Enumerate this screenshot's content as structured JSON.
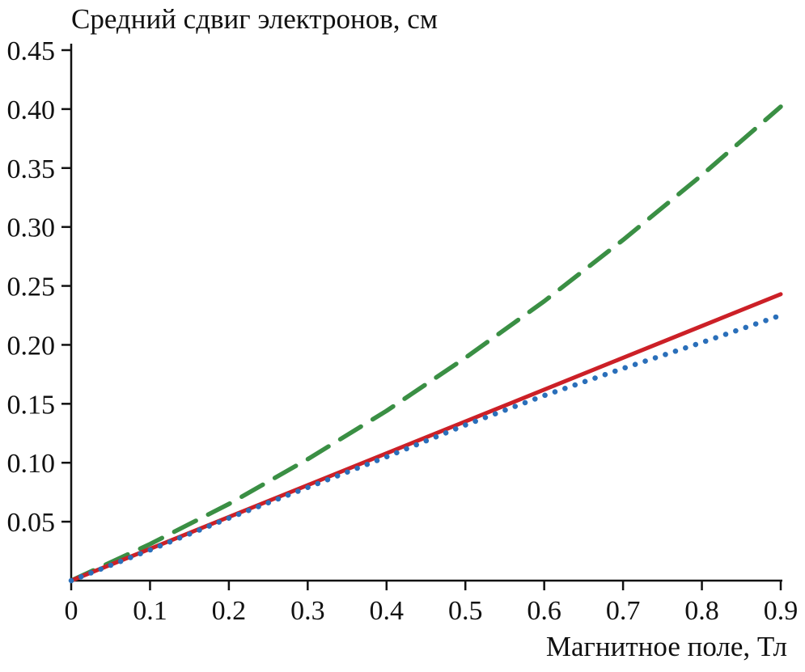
{
  "chart_data": {
    "type": "line",
    "title": "Средний сдвиг электронов, см",
    "xlabel": "Магнитное поле, Тл",
    "ylabel": "Средний сдвиг электронов, см",
    "xlim": [
      0,
      0.9
    ],
    "ylim": [
      0,
      0.45
    ],
    "grid": false,
    "legend": "none",
    "axis_color": "#111111",
    "xticks": [
      0,
      0.1,
      0.2,
      0.3,
      0.4,
      0.5,
      0.6,
      0.7,
      0.8,
      0.9
    ],
    "xtick_labels": [
      "0",
      "0.1",
      "0.2",
      "0.3",
      "0.4",
      "0.5",
      "0.6",
      "0.7",
      "0.8",
      "0.9"
    ],
    "yticks": [
      0.05,
      0.1,
      0.15,
      0.2,
      0.25,
      0.3,
      0.35,
      0.4,
      0.45
    ],
    "ytick_labels": [
      "0.05",
      "0.10",
      "0.15",
      "0.20",
      "0.25",
      "0.30",
      "0.35",
      "0.40",
      "0.45"
    ],
    "series": [
      {
        "name": "green-dashed-curve",
        "line_style": "dashed",
        "color": "#3a8f44",
        "x": [
          0,
          0.1,
          0.2,
          0.3,
          0.4,
          0.5,
          0.6,
          0.7,
          0.8,
          0.9
        ],
        "y": [
          0,
          0.031,
          0.065,
          0.103,
          0.144,
          0.189,
          0.237,
          0.289,
          0.344,
          0.402
        ]
      },
      {
        "name": "red-solid-line",
        "line_style": "solid",
        "color": "#cc2027",
        "x": [
          0,
          0.1,
          0.2,
          0.3,
          0.4,
          0.5,
          0.6,
          0.7,
          0.8,
          0.9
        ],
        "y": [
          0,
          0.027,
          0.054,
          0.081,
          0.108,
          0.135,
          0.162,
          0.189,
          0.216,
          0.243
        ]
      },
      {
        "name": "blue-dotted-curve",
        "line_style": "dotted",
        "color": "#2a6fba",
        "x": [
          0,
          0.1,
          0.2,
          0.3,
          0.4,
          0.5,
          0.6,
          0.7,
          0.8,
          0.9
        ],
        "y": [
          0,
          0.026,
          0.053,
          0.079,
          0.105,
          0.132,
          0.157,
          0.18,
          0.202,
          0.225
        ]
      }
    ]
  }
}
